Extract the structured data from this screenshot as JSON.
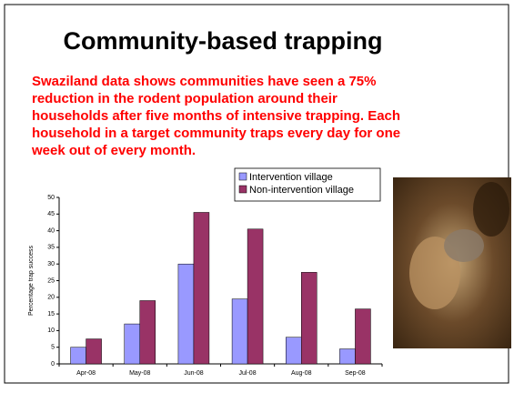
{
  "slide": {
    "title": "Community-based trapping",
    "body": [
      "Swaziland data shows communities have seen a 75%",
      "reduction in the rodent population around their",
      "households after five months of intensive trapping.  Each",
      "household in a target community traps every day for one",
      "week out of every month."
    ]
  },
  "chart_data": {
    "type": "bar",
    "y_label": "Percentage trap success",
    "categories": [
      "Apr-08",
      "May-08",
      "Jun-08",
      "Jul-08",
      "Aug-08",
      "Sep-08"
    ],
    "series": [
      {
        "name": "Intervention village",
        "color": "#9999ff",
        "values": [
          5,
          12,
          30,
          19.5,
          8,
          4.5
        ]
      },
      {
        "name": "Non-intervention village",
        "color": "#993366",
        "values": [
          7.5,
          19,
          45.5,
          40.5,
          27.5,
          16.5
        ]
      }
    ],
    "ylim": [
      0,
      50
    ],
    "yticks": [
      0,
      5,
      10,
      15,
      20,
      25,
      30,
      35,
      40,
      45,
      50
    ],
    "legend": "top-right"
  }
}
